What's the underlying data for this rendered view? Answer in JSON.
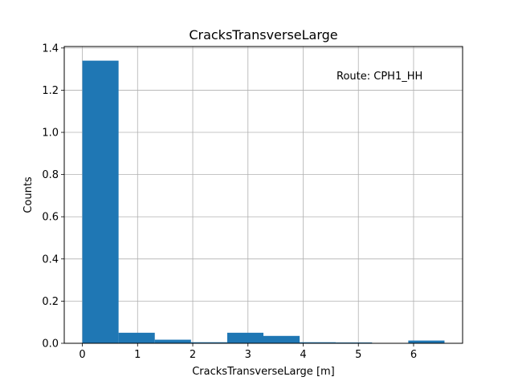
{
  "chart_data": {
    "type": "bar",
    "title": "CracksTransverseLarge",
    "xlabel": "CracksTransverseLarge [m]",
    "ylabel": "Counts",
    "annotation": "Route: CPH1_HH",
    "bins": [
      {
        "x0": 0.0,
        "x1": 0.656,
        "value": 1.34
      },
      {
        "x0": 0.656,
        "x1": 1.312,
        "value": 0.05
      },
      {
        "x0": 1.312,
        "x1": 1.968,
        "value": 0.017
      },
      {
        "x0": 1.968,
        "x1": 2.624,
        "value": 0.005
      },
      {
        "x0": 2.624,
        "x1": 3.28,
        "value": 0.05
      },
      {
        "x0": 3.28,
        "x1": 3.936,
        "value": 0.035
      },
      {
        "x0": 3.936,
        "x1": 4.592,
        "value": 0.005
      },
      {
        "x0": 4.592,
        "x1": 5.248,
        "value": 0.004
      },
      {
        "x0": 5.248,
        "x1": 5.904,
        "value": 0.0
      },
      {
        "x0": 5.904,
        "x1": 6.56,
        "value": 0.013
      }
    ],
    "xlim": [
      -0.328,
      6.888
    ],
    "ylim": [
      0,
      1.407
    ],
    "xticks": [
      0,
      1,
      2,
      3,
      4,
      5,
      6
    ],
    "xtick_labels": [
      "0",
      "1",
      "2",
      "3",
      "4",
      "5",
      "6"
    ],
    "yticks": [
      0.0,
      0.2,
      0.4,
      0.6,
      0.8,
      1.0,
      1.2,
      1.4
    ],
    "ytick_labels": [
      "0.0",
      "0.2",
      "0.4",
      "0.6",
      "0.8",
      "1.0",
      "1.2",
      "1.4"
    ],
    "grid": true,
    "bar_color": "#1f77b4",
    "grid_color": "#b0b0b0"
  }
}
